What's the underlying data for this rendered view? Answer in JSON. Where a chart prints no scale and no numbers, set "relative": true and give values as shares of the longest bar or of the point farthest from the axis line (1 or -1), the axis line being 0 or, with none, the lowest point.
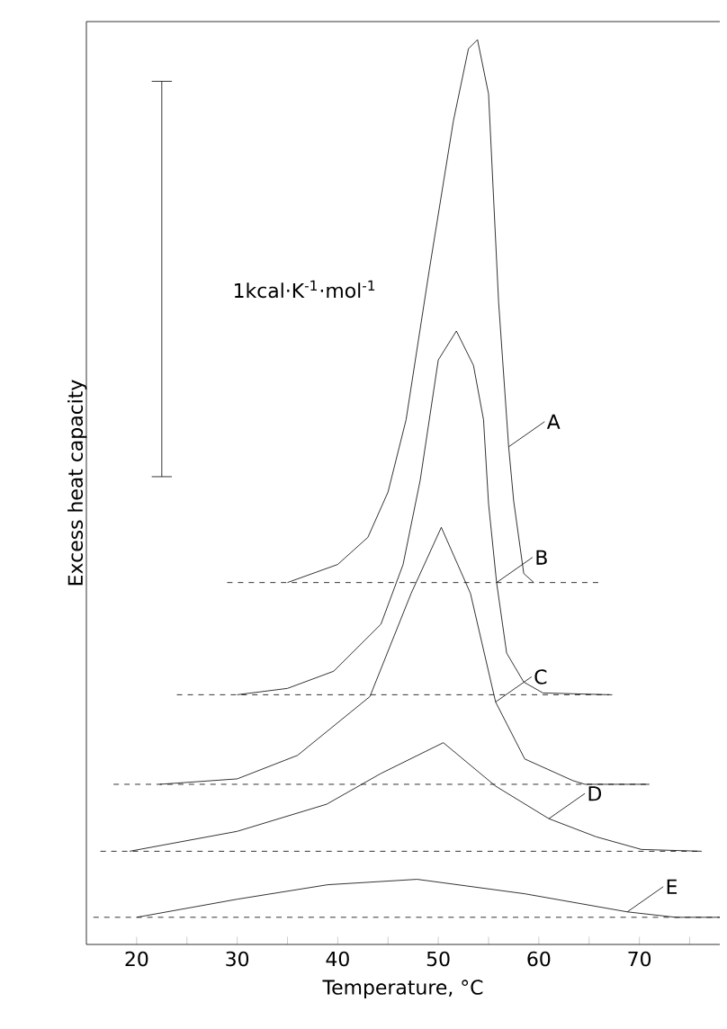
{
  "chart_data": {
    "type": "line",
    "relative": true,
    "xlabel": "Temperature, °C",
    "ylabel": "Excess heat capacity",
    "xlim": [
      15,
      78
    ],
    "xticks": [
      20,
      {
        "value": 25,
        "label": null
      },
      30,
      {
        "value": 35,
        "label": null
      },
      40,
      {
        "value": 45,
        "label": null
      },
      50,
      {
        "value": 55,
        "label": null
      },
      60,
      {
        "value": 65,
        "label": null
      },
      70,
      {
        "value": 75,
        "label": null
      }
    ],
    "line_style": "solid",
    "legend": "right",
    "annotations": [
      "1kcal·K$^{-1}$·mol$^{-1}$"
    ],
    "series": [
      {
        "name": "A",
        "color": "#000000",
        "x": [
          35,
          40,
          43,
          45,
          46.8,
          49.1,
          51.5,
          53,
          53.9,
          55,
          56,
          57,
          57.5,
          58.5,
          59.5
        ],
        "values": [
          0.4,
          0.42,
          0.45,
          0.5,
          0.58,
          0.745,
          0.91,
          0.99,
          1.0,
          0.94,
          0.71,
          0.55,
          0.49,
          0.41,
          0.4
        ]
      },
      {
        "color": "#000000",
        "line_style": "dashed",
        "x": [
          29,
          66.4
        ],
        "values": [
          0.4,
          0.4
        ]
      },
      {
        "name": "B",
        "color": "#000000",
        "x": [
          30,
          35,
          39.6,
          44.3,
          46.5,
          48.2,
          50,
          51.8,
          53.5,
          54.5,
          55,
          55.8,
          56.8,
          58.5,
          60.4,
          67
        ],
        "values": [
          0.276,
          0.283,
          0.302,
          0.354,
          0.42,
          0.513,
          0.646,
          0.678,
          0.64,
          0.58,
          0.487,
          0.4,
          0.322,
          0.29,
          0.278,
          0.276
        ]
      },
      {
        "color": "#000000",
        "line_style": "dashed",
        "x": [
          24,
          67.3
        ],
        "values": [
          0.276,
          0.276
        ]
      },
      {
        "name": "C",
        "color": "#000000",
        "x": [
          22.3,
          30,
          36,
          43.2,
          47.3,
          50.3,
          53.2,
          55.7,
          58.6,
          63.4,
          64.6,
          71
        ],
        "values": [
          0.177,
          0.183,
          0.209,
          0.274,
          0.388,
          0.461,
          0.388,
          0.268,
          0.205,
          0.181,
          0.177,
          0.177
        ]
      },
      {
        "color": "#000000",
        "line_style": "dashed",
        "x": [
          17.7,
          71
        ],
        "values": [
          0.177,
          0.177
        ]
      },
      {
        "name": "D",
        "color": "#000000",
        "x": [
          19.3,
          30,
          38.9,
          44.3,
          50.5,
          55.7,
          61,
          65.7,
          70.2,
          76.2
        ],
        "values": [
          0.103,
          0.125,
          0.155,
          0.189,
          0.223,
          0.175,
          0.139,
          0.119,
          0.105,
          0.103
        ]
      },
      {
        "color": "#000000",
        "line_style": "dashed",
        "x": [
          16.4,
          76.2
        ],
        "values": [
          0.103,
          0.103
        ]
      },
      {
        "name": "E",
        "color": "#000000",
        "x": [
          20,
          30,
          39,
          47.9,
          58.6,
          68.8,
          73.6,
          78
        ],
        "values": [
          0.03,
          0.05,
          0.066,
          0.072,
          0.056,
          0.036,
          0.03,
          0.03
        ]
      },
      {
        "color": "#000000",
        "line_style": "dashed",
        "x": [
          15.7,
          78
        ],
        "values": [
          0.03,
          0.03
        ]
      },
      {
        "color": "#000000",
        "x": [
          22.5,
          22.5
        ],
        "values": [
          0.954,
          0.517
        ]
      },
      {
        "color": "#000000",
        "x": [
          21.5,
          23.5
        ],
        "values": [
          0.954,
          0.954
        ]
      },
      {
        "color": "#000000",
        "x": [
          21.5,
          23.5
        ],
        "values": [
          0.517,
          0.517
        ]
      }
    ]
  }
}
